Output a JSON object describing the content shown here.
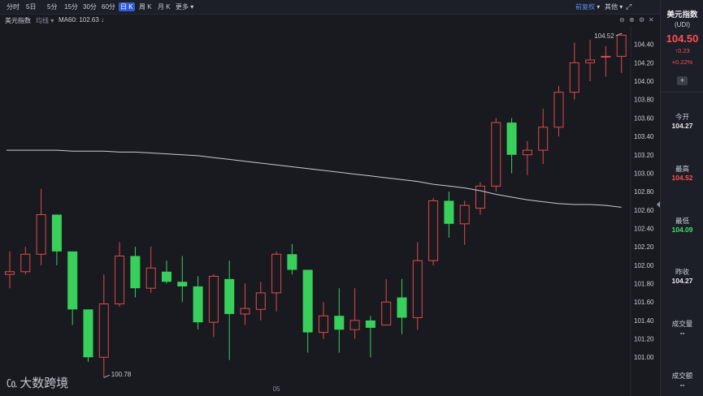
{
  "toolbar": {
    "periods": [
      "分时",
      "5日",
      "5分",
      "15分",
      "30分",
      "60分",
      "日 K",
      "周 K",
      "月 K",
      "更多"
    ],
    "active_period": "日 K",
    "more_caret": "▾",
    "adjust_label": "前复权",
    "other_label": "其他"
  },
  "info": {
    "symbol_label": "美元指数",
    "indicator_label": "均线",
    "ma_text": "MA60: 102.63",
    "ma_arrow": "↓"
  },
  "side": {
    "name": "美元指数",
    "code": "(UDI)",
    "price": "104.50",
    "change": "0.23",
    "change_pct": "+0.22%",
    "add_symbol": "+",
    "stats": [
      {
        "label": "今开",
        "value": "104.27"
      },
      {
        "label": "最高",
        "value": "104.52"
      },
      {
        "label": "最低",
        "value": "104.09"
      },
      {
        "label": "昨收",
        "value": "104.27"
      },
      {
        "label": "成交量",
        "value": "--"
      },
      {
        "label": "成交额",
        "value": "--"
      }
    ]
  },
  "watermark": "大数跨境",
  "chart_data": {
    "type": "candlestick",
    "y_ticks": [
      "104.40",
      "104.20",
      "104.00",
      "103.80",
      "103.60",
      "103.40",
      "103.20",
      "103.00",
      "102.80",
      "102.60",
      "102.40",
      "102.20",
      "102.00",
      "101.80",
      "101.60",
      "101.40",
      "101.20",
      "101.00"
    ],
    "ylim": [
      100.72,
      104.6
    ],
    "x_label": "05",
    "x_label_index": 17,
    "max_label": "104.52",
    "min_label": "100.78",
    "up_color": "#e04a4a",
    "down_color": "#38d05a",
    "ma_color": "#c8ccd4",
    "candles": [
      {
        "o": 101.9,
        "h": 102.15,
        "l": 101.75,
        "c": 101.93
      },
      {
        "o": 101.93,
        "h": 102.2,
        "l": 101.9,
        "c": 102.12
      },
      {
        "o": 102.12,
        "h": 102.83,
        "l": 102.0,
        "c": 102.55
      },
      {
        "o": 102.55,
        "h": 102.55,
        "l": 102.0,
        "c": 102.15
      },
      {
        "o": 102.15,
        "h": 102.15,
        "l": 101.35,
        "c": 101.52
      },
      {
        "o": 101.52,
        "h": 101.52,
        "l": 100.95,
        "c": 101.0
      },
      {
        "o": 101.0,
        "h": 101.9,
        "l": 100.78,
        "c": 101.58
      },
      {
        "o": 101.58,
        "h": 102.25,
        "l": 101.55,
        "c": 102.1
      },
      {
        "o": 102.1,
        "h": 102.2,
        "l": 101.65,
        "c": 101.75
      },
      {
        "o": 101.75,
        "h": 102.2,
        "l": 101.7,
        "c": 101.97
      },
      {
        "o": 101.93,
        "h": 102.05,
        "l": 101.8,
        "c": 101.82
      },
      {
        "o": 101.82,
        "h": 102.1,
        "l": 101.6,
        "c": 101.77
      },
      {
        "o": 101.77,
        "h": 101.88,
        "l": 101.3,
        "c": 101.38
      },
      {
        "o": 101.38,
        "h": 101.9,
        "l": 101.22,
        "c": 101.88
      },
      {
        "o": 101.85,
        "h": 102.05,
        "l": 100.97,
        "c": 101.47
      },
      {
        "o": 101.47,
        "h": 101.8,
        "l": 101.35,
        "c": 101.53
      },
      {
        "o": 101.52,
        "h": 101.82,
        "l": 101.4,
        "c": 101.7
      },
      {
        "o": 101.7,
        "h": 102.15,
        "l": 101.5,
        "c": 102.12
      },
      {
        "o": 102.12,
        "h": 102.23,
        "l": 101.9,
        "c": 101.95
      },
      {
        "o": 101.95,
        "h": 101.95,
        "l": 101.05,
        "c": 101.27
      },
      {
        "o": 101.27,
        "h": 101.6,
        "l": 101.2,
        "c": 101.45
      },
      {
        "o": 101.45,
        "h": 101.75,
        "l": 101.05,
        "c": 101.3
      },
      {
        "o": 101.3,
        "h": 101.75,
        "l": 101.2,
        "c": 101.4
      },
      {
        "o": 101.4,
        "h": 101.45,
        "l": 101.0,
        "c": 101.32
      },
      {
        "o": 101.35,
        "h": 101.85,
        "l": 101.35,
        "c": 101.6
      },
      {
        "o": 101.65,
        "h": 101.85,
        "l": 101.25,
        "c": 101.43
      },
      {
        "o": 101.43,
        "h": 102.25,
        "l": 101.3,
        "c": 102.05
      },
      {
        "o": 102.05,
        "h": 102.73,
        "l": 102.0,
        "c": 102.7
      },
      {
        "o": 102.7,
        "h": 102.8,
        "l": 102.3,
        "c": 102.45
      },
      {
        "o": 102.45,
        "h": 102.7,
        "l": 102.22,
        "c": 102.65
      },
      {
        "o": 102.62,
        "h": 102.9,
        "l": 102.55,
        "c": 102.86
      },
      {
        "o": 102.86,
        "h": 103.6,
        "l": 102.8,
        "c": 103.55
      },
      {
        "o": 103.55,
        "h": 103.6,
        "l": 103.0,
        "c": 103.2
      },
      {
        "o": 103.2,
        "h": 103.35,
        "l": 102.98,
        "c": 103.25
      },
      {
        "o": 103.25,
        "h": 103.7,
        "l": 103.1,
        "c": 103.5
      },
      {
        "o": 103.5,
        "h": 103.95,
        "l": 103.4,
        "c": 103.88
      },
      {
        "o": 103.88,
        "h": 104.42,
        "l": 103.8,
        "c": 104.2
      },
      {
        "o": 104.2,
        "h": 104.45,
        "l": 104.0,
        "c": 104.23
      },
      {
        "o": 104.27,
        "h": 104.38,
        "l": 104.05,
        "c": 104.27
      },
      {
        "o": 104.27,
        "h": 104.52,
        "l": 104.09,
        "c": 104.5
      }
    ],
    "ma60": [
      103.25,
      103.25,
      103.25,
      103.25,
      103.24,
      103.24,
      103.24,
      103.23,
      103.23,
      103.22,
      103.21,
      103.2,
      103.19,
      103.17,
      103.15,
      103.13,
      103.11,
      103.09,
      103.07,
      103.05,
      103.03,
      103.01,
      102.99,
      102.97,
      102.95,
      102.93,
      102.91,
      102.88,
      102.86,
      102.84,
      102.81,
      102.77,
      102.74,
      102.71,
      102.69,
      102.67,
      102.66,
      102.66,
      102.65,
      102.63
    ]
  }
}
